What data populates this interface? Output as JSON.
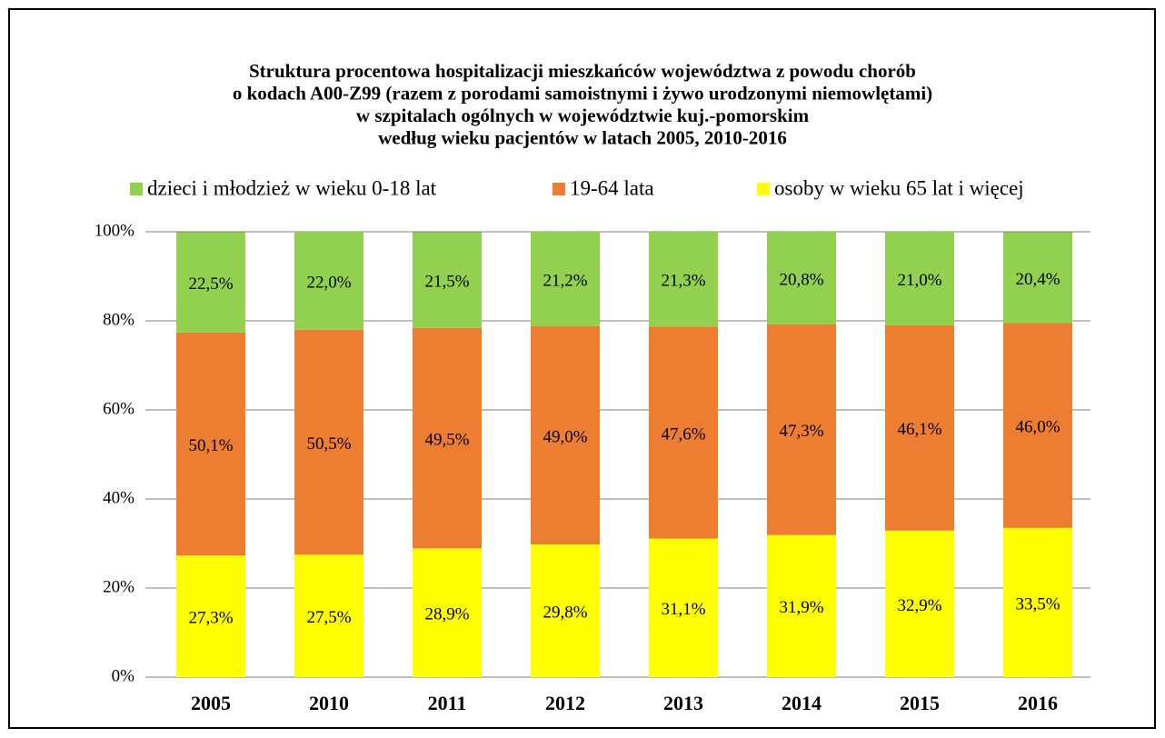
{
  "chart_data": {
    "type": "stacked-bar",
    "title": [
      "Struktura procentowa hospitalizacji mieszkańców województwa z powodu chorób",
      "o kodach A00-Z99 (razem z porodami samoistnymi i żywo urodzonymi niemowlętami)",
      "w szpitalach ogólnych w województwie kuj.-pomorskim",
      "według wieku pacjentów w latach 2005, 2010-2016"
    ],
    "categories": [
      "2005",
      "2010",
      "2011",
      "2012",
      "2013",
      "2014",
      "2015",
      "2016"
    ],
    "series": [
      {
        "name": "dzieci i młodzież w wieku 0-18 lat",
        "color": "#92d050",
        "values": [
          22.5,
          22.0,
          21.5,
          21.2,
          21.3,
          20.8,
          21.0,
          20.4
        ],
        "value_labels": [
          "22,5%",
          "22,0%",
          "21,5%",
          "21,2%",
          "21,3%",
          "20,8%",
          "21,0%",
          "20,4%"
        ]
      },
      {
        "name": "19-64 lata",
        "color": "#ed7d31",
        "values": [
          50.1,
          50.5,
          49.5,
          49.0,
          47.6,
          47.3,
          46.1,
          46.0
        ],
        "value_labels": [
          "50,1%",
          "50,5%",
          "49,5%",
          "49,0%",
          "47,6%",
          "47,3%",
          "46,1%",
          "46,0%"
        ]
      },
      {
        "name": "osoby w wieku 65 lat i więcej",
        "color": "#ffff00",
        "values": [
          27.3,
          27.5,
          28.9,
          29.8,
          31.1,
          31.9,
          32.9,
          33.5
        ],
        "value_labels": [
          "27,3%",
          "27,5%",
          "28,9%",
          "29,8%",
          "31,1%",
          "31,9%",
          "32,9%",
          "33,5%"
        ]
      }
    ],
    "ylim": [
      0,
      100
    ],
    "yticks": [
      {
        "value": 0,
        "label": "0%"
      },
      {
        "value": 20,
        "label": "20%"
      },
      {
        "value": 40,
        "label": "40%"
      },
      {
        "value": 60,
        "label": "60%"
      },
      {
        "value": 80,
        "label": "80%"
      },
      {
        "value": 100,
        "label": "100%"
      }
    ],
    "grid": true,
    "legend": "top"
  }
}
